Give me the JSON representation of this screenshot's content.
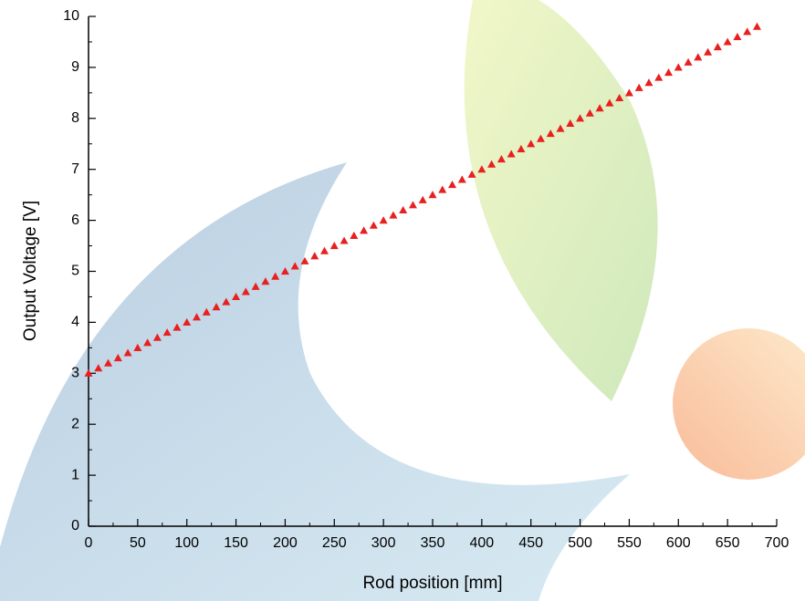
{
  "chart_data": {
    "type": "scatter",
    "x_label": "Rod position [mm]",
    "y_label": "Output Voltage [V]",
    "series": [
      {
        "color": "#e8201f",
        "marker": "triangle-up",
        "x": [
          0,
          10,
          20,
          30,
          40,
          50,
          60,
          70,
          80,
          90,
          100,
          110,
          120,
          130,
          140,
          150,
          160,
          170,
          180,
          190,
          200,
          210,
          220,
          230,
          240,
          250,
          260,
          270,
          280,
          290,
          300,
          310,
          320,
          330,
          340,
          350,
          360,
          370,
          380,
          390,
          400,
          410,
          420,
          430,
          440,
          450,
          460,
          470,
          480,
          490,
          500,
          510,
          520,
          530,
          540,
          550,
          560,
          570,
          580,
          590,
          600,
          610,
          620,
          630,
          640,
          650,
          660,
          670,
          680
        ],
        "values": [
          3,
          3.1,
          3.2,
          3.3,
          3.4,
          3.5,
          3.6,
          3.7,
          3.8,
          3.9,
          4,
          4.1,
          4.2,
          4.3,
          4.4,
          4.5,
          4.6,
          4.7,
          4.8,
          4.9,
          5,
          5.1,
          5.2,
          5.3,
          5.4,
          5.5,
          5.6,
          5.7,
          5.8,
          5.9,
          6,
          6.1,
          6.2,
          6.3,
          6.4,
          6.5,
          6.6,
          6.7,
          6.8,
          6.9,
          7,
          7.1,
          7.2,
          7.3,
          7.4,
          7.5,
          7.6,
          7.7,
          7.8,
          7.9,
          8,
          8.1,
          8.2,
          8.3,
          8.4,
          8.5,
          8.6,
          8.7,
          8.8,
          8.9,
          9,
          9.1,
          9.2,
          9.3,
          9.4,
          9.5,
          9.6,
          9.7,
          9.8
        ]
      }
    ],
    "xlim": [
      0,
      700
    ],
    "xticks": [
      0,
      50,
      100,
      150,
      200,
      250,
      300,
      350,
      400,
      450,
      500,
      550,
      600,
      650,
      700
    ],
    "xminorticks": [
      25,
      75,
      125,
      175,
      225,
      275,
      325,
      375,
      425,
      475,
      525,
      575,
      625,
      675
    ],
    "ylim": [
      0,
      10
    ],
    "yticks": [
      0,
      1,
      2,
      3,
      4,
      5,
      6,
      7,
      8,
      9,
      10
    ],
    "yminorticks": [
      0.5,
      1.5,
      2.5,
      3.5,
      4.5,
      5.5,
      6.5,
      7.5,
      8.5,
      9.5
    ],
    "grid": false
  }
}
